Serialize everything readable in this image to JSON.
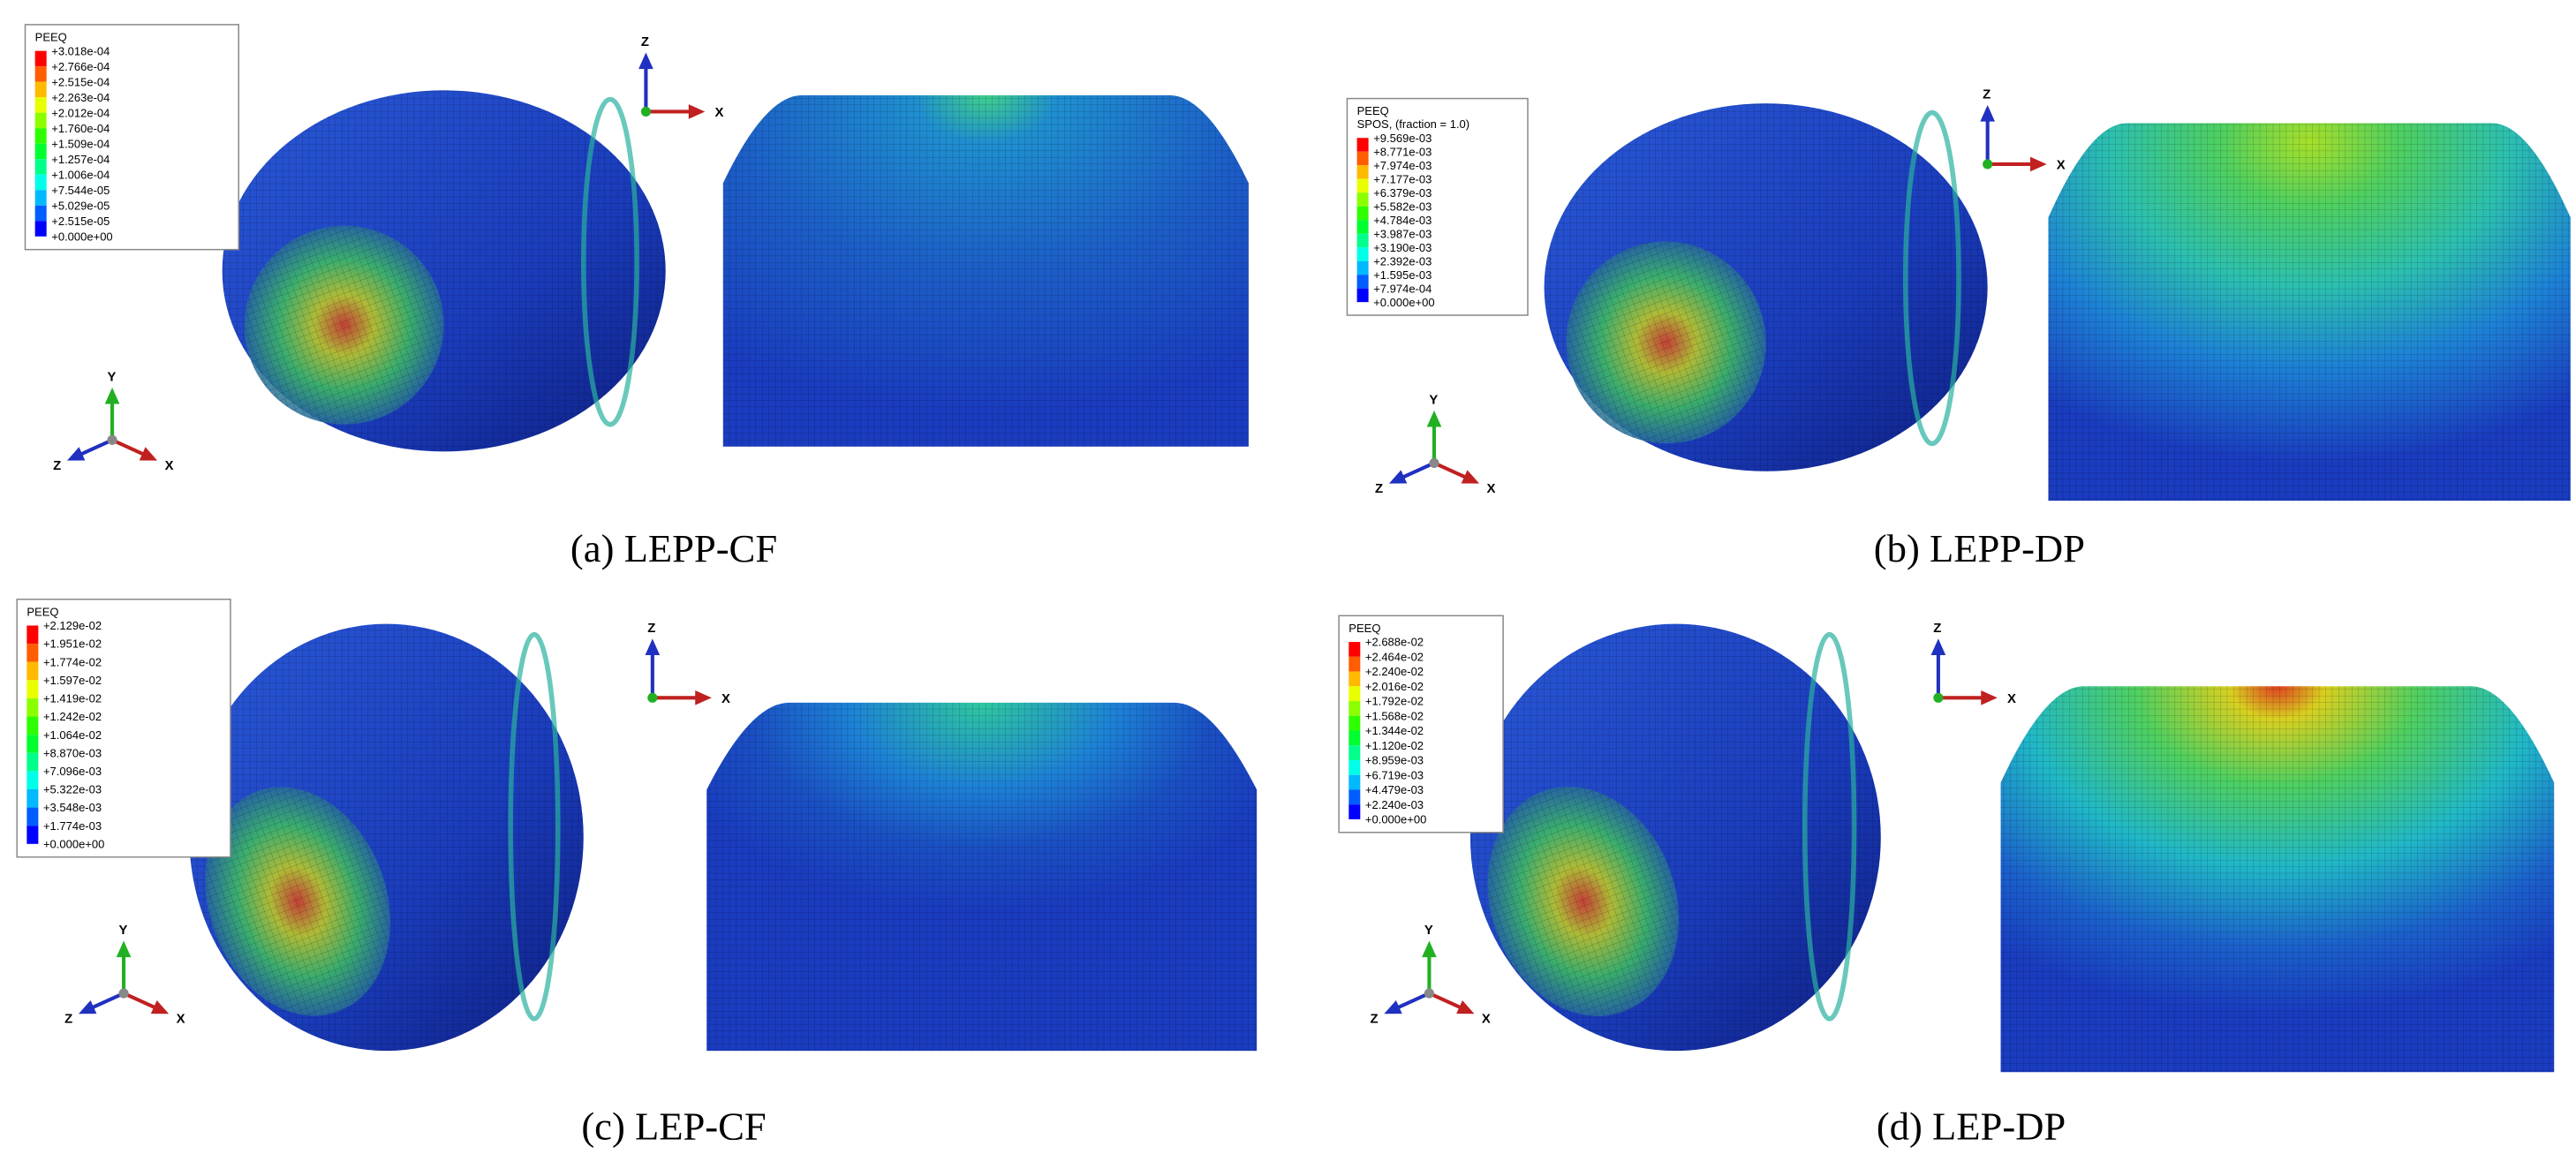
{
  "panels": [
    {
      "caption": "(a) LEPP-CF",
      "legend": {
        "title": "PEEQ",
        "labels": [
          "+3.018e-04",
          "+2.766e-04",
          "+2.515e-04",
          "+2.263e-04",
          "+2.012e-04",
          "+1.760e-04",
          "+1.509e-04",
          "+1.257e-04",
          "+1.006e-04",
          "+7.544e-05",
          "+5.029e-05",
          "+2.515e-05",
          "+0.000e+00"
        ]
      },
      "triad_3d": [
        "Y",
        "Z",
        "X"
      ],
      "triad_2d": [
        "Z",
        "X"
      ]
    },
    {
      "caption": "(b) LEPP-DP",
      "legend": {
        "title": "PEEQ",
        "subtitle": "SPOS, (fraction = 1.0)",
        "labels": [
          "+9.569e-03",
          "+8.771e-03",
          "+7.974e-03",
          "+7.177e-03",
          "+6.379e-03",
          "+5.582e-03",
          "+4.784e-03",
          "+3.987e-03",
          "+3.190e-03",
          "+2.392e-03",
          "+1.595e-03",
          "+7.974e-04",
          "+0.000e+00"
        ]
      },
      "triad_3d": [
        "Y",
        "Z",
        "X"
      ],
      "triad_2d": [
        "Z",
        "X"
      ]
    },
    {
      "caption": "(c) LEP-CF",
      "legend": {
        "title": "PEEQ",
        "labels": [
          "+2.129e-02",
          "+1.951e-02",
          "+1.774e-02",
          "+1.597e-02",
          "+1.419e-02",
          "+1.242e-02",
          "+1.064e-02",
          "+8.870e-03",
          "+7.096e-03",
          "+5.322e-03",
          "+3.548e-03",
          "+1.774e-03",
          "+0.000e+00"
        ]
      },
      "triad_3d": [
        "Y",
        "Z",
        "X"
      ],
      "triad_2d": [
        "Z",
        "X"
      ]
    },
    {
      "caption": "(d) LEP-DP",
      "legend": {
        "title": "PEEQ",
        "labels": [
          "+2.688e-02",
          "+2.464e-02",
          "+2.240e-02",
          "+2.016e-02",
          "+1.792e-02",
          "+1.568e-02",
          "+1.344e-02",
          "+1.120e-02",
          "+8.959e-03",
          "+6.719e-03",
          "+4.479e-03",
          "+2.240e-03",
          "+0.000e+00"
        ]
      },
      "triad_3d": [
        "Y",
        "Z",
        "X"
      ],
      "triad_2d": [
        "Z",
        "X"
      ]
    }
  ]
}
